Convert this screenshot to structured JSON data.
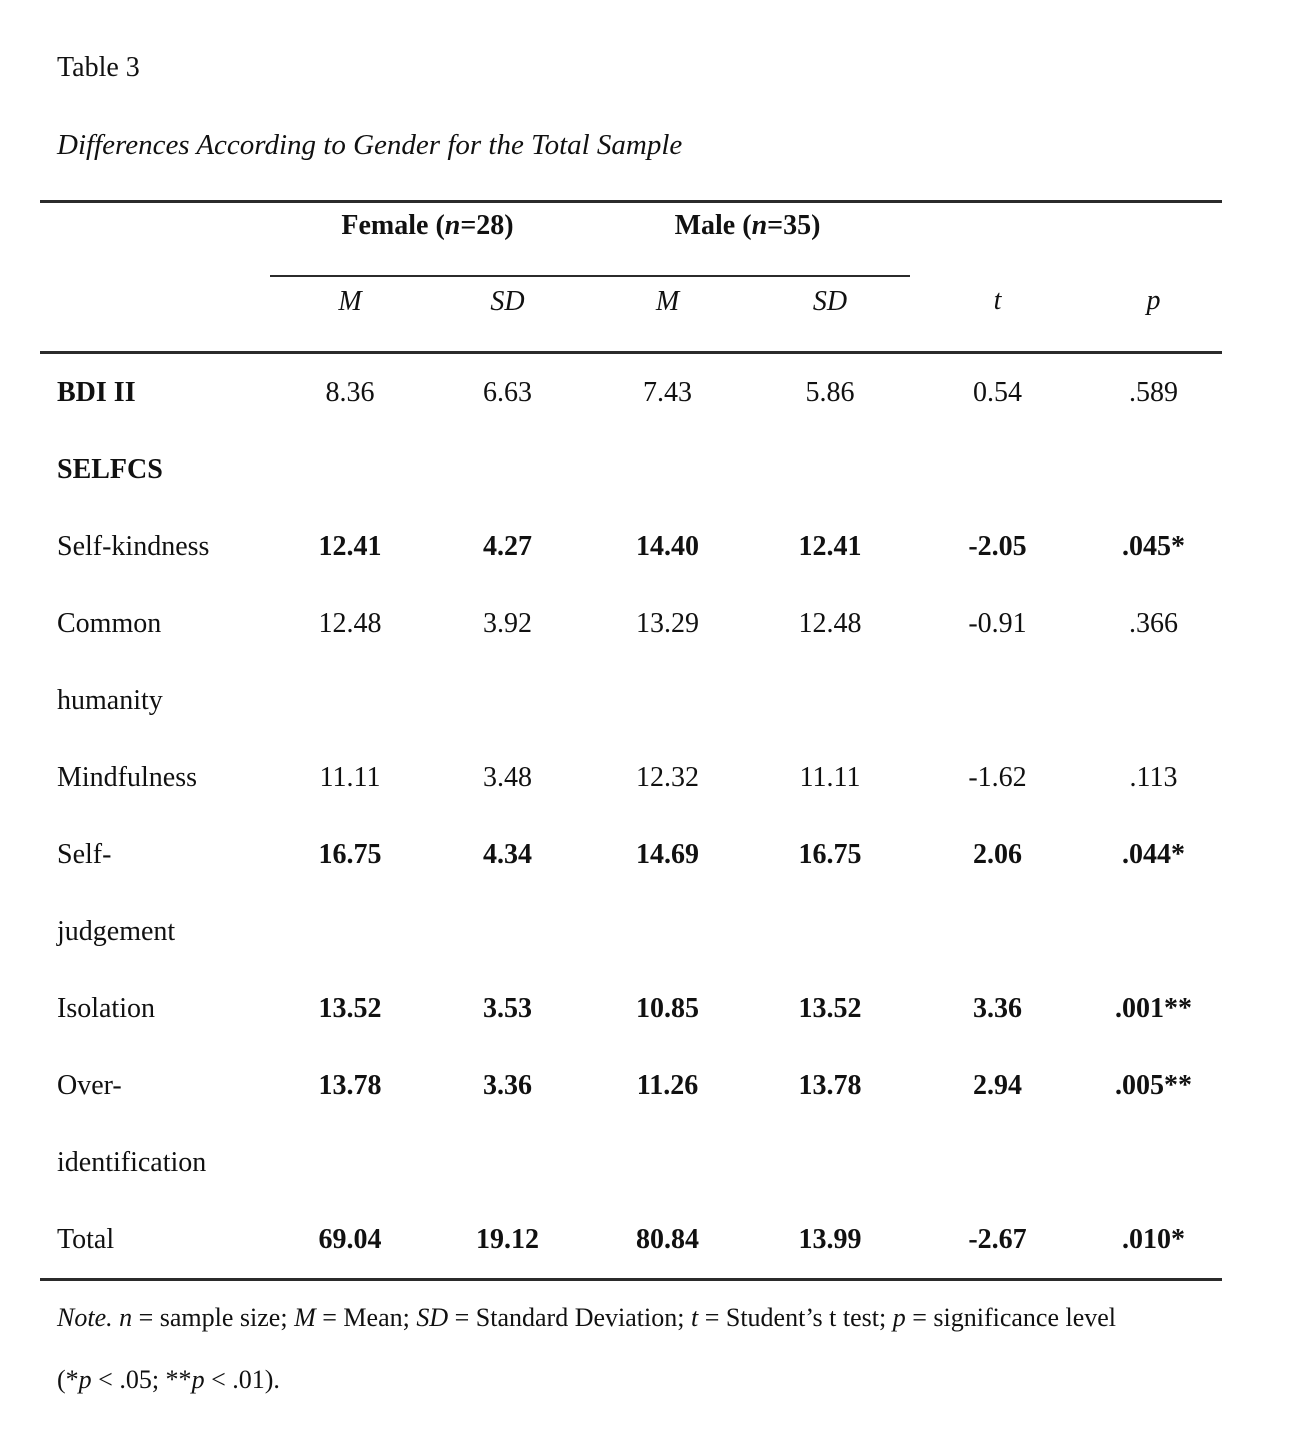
{
  "document": {
    "table_number": "Table 3",
    "table_title": "Differences According to Gender for the Total Sample"
  },
  "table": {
    "groups": {
      "female": [
        {
          "t": "Female ("
        },
        {
          "t": "n",
          "i": true
        },
        {
          "t": "=28)"
        }
      ],
      "male": [
        {
          "t": "Male ("
        },
        {
          "t": "n",
          "i": true
        },
        {
          "t": "=35)"
        }
      ]
    },
    "columns": [
      "M",
      "SD",
      "M",
      "SD",
      "t",
      "p"
    ],
    "rows": [
      {
        "label": "BDI II",
        "values": [
          "8.36",
          "6.63",
          "7.43",
          "5.86",
          "0.54",
          ".589"
        ]
      },
      {
        "label": "SELFCS",
        "values": [
          "",
          "",
          "",
          "",
          "",
          ""
        ]
      },
      {
        "label": "Self-kindness",
        "values": [
          "12.41",
          "4.27",
          "14.40",
          "12.41",
          "-2.05",
          ".045*"
        ]
      },
      {
        "label": "Common\nhumanity",
        "values": [
          "12.48",
          "3.92",
          "13.29",
          "12.48",
          "-0.91",
          ".366"
        ]
      },
      {
        "label": "Mindfulness",
        "values": [
          "11.11",
          "3.48",
          "12.32",
          "11.11",
          "-1.62",
          ".113"
        ]
      },
      {
        "label": "Self-\njudgement",
        "values": [
          "16.75",
          "4.34",
          "14.69",
          "16.75",
          "2.06",
          ".044*"
        ]
      },
      {
        "label": "Isolation",
        "values": [
          "13.52",
          "3.53",
          "10.85",
          "13.52",
          "3.36",
          ".001**"
        ]
      },
      {
        "label": "Over-\nidentification",
        "values": [
          "13.78",
          "3.36",
          "11.26",
          "13.78",
          "2.94",
          ".005**"
        ]
      },
      {
        "label": "Total",
        "values": [
          "69.04",
          "19.12",
          "80.84",
          "13.99",
          "-2.67",
          ".010*"
        ]
      }
    ]
  },
  "note": {
    "line1": [
      {
        "t": "Note.",
        "i": true
      },
      {
        "t": " "
      },
      {
        "t": "n",
        "i": true
      },
      {
        "t": " = sample size; "
      },
      {
        "t": "M",
        "i": true
      },
      {
        "t": " = Mean; "
      },
      {
        "t": "SD",
        "i": true
      },
      {
        "t": " = Standard Deviation; "
      },
      {
        "t": "t",
        "i": true
      },
      {
        "t": " = Student’s t test; "
      },
      {
        "t": "p",
        "i": true
      },
      {
        "t": " = significance level"
      }
    ],
    "line2": [
      {
        "t": "(*"
      },
      {
        "t": "p",
        "i": true
      },
      {
        "t": " < .05; **"
      },
      {
        "t": "p",
        "i": true
      },
      {
        "t": " < .01)."
      }
    ]
  }
}
